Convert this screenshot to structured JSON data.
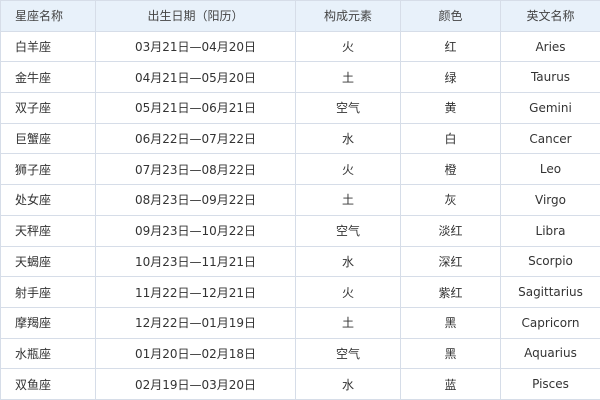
{
  "table": {
    "columns": [
      "星座名称",
      "出生日期（阳历）",
      "构成元素",
      "颜色",
      "英文名称"
    ],
    "rows": [
      [
        "白羊座",
        "03月21日—04月20日",
        "火",
        "红",
        "Aries"
      ],
      [
        "金牛座",
        "04月21日—05月20日",
        "土",
        "绿",
        "Taurus"
      ],
      [
        "双子座",
        "05月21日—06月21日",
        "空气",
        "黄",
        "Gemini"
      ],
      [
        "巨蟹座",
        "06月22日—07月22日",
        "水",
        "白",
        "Cancer"
      ],
      [
        "狮子座",
        "07月23日—08月22日",
        "火",
        "橙",
        "Leo"
      ],
      [
        "处女座",
        "08月23日—09月22日",
        "土",
        "灰",
        "Virgo"
      ],
      [
        "天秤座",
        "09月23日—10月22日",
        "空气",
        "淡红",
        "Libra"
      ],
      [
        "天蝎座",
        "10月23日—11月21日",
        "水",
        "深红",
        "Scorpio"
      ],
      [
        "射手座",
        "11月22日—12月21日",
        "火",
        "紫红",
        "Sagittarius"
      ],
      [
        "摩羯座",
        "12月22日—01月19日",
        "土",
        "黑",
        "Capricorn"
      ],
      [
        "水瓶座",
        "01月20日—02月18日",
        "空气",
        "黑",
        "Aquarius"
      ],
      [
        "双鱼座",
        "02月19日—03月20日",
        "水",
        "蓝",
        "Pisces"
      ]
    ]
  }
}
